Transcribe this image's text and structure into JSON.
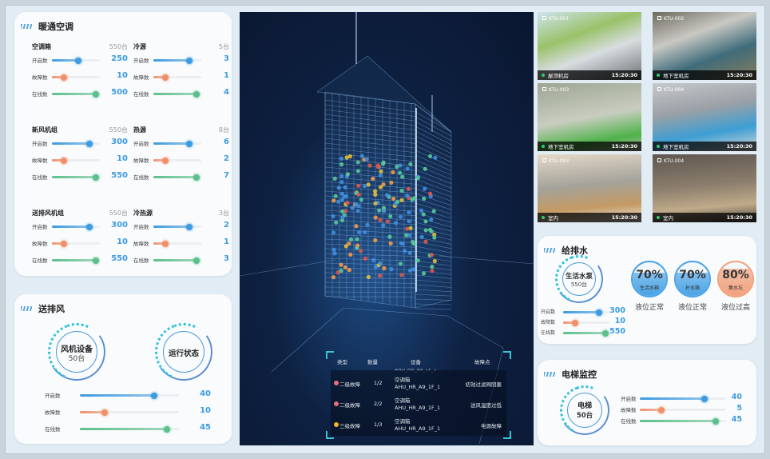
{
  "colors": {
    "accent": "#3d9be0",
    "on": "#3d9be0",
    "fault": "#f0906a",
    "online": "#5cc08c",
    "center_bg": "#0e2142",
    "cyan": "#3cc3d0"
  },
  "labels": {
    "on": "开启数",
    "fault": "故障数",
    "online": "在线数"
  },
  "hvac": {
    "title": "暖通空调",
    "groups": [
      {
        "name": "空调箱",
        "total": "550台",
        "on": {
          "value": "250",
          "level": 0.55
        },
        "fault": {
          "value": "10",
          "level": 0.25
        },
        "online": {
          "value": "500",
          "level": 0.92
        }
      },
      {
        "name": "冷源",
        "total": "5台",
        "on": {
          "value": "3",
          "level": 0.75
        },
        "fault": {
          "value": "1",
          "level": 0.25
        },
        "online": {
          "value": "4",
          "level": 0.9
        }
      },
      {
        "name": "新风机组",
        "total": "550台",
        "on": {
          "value": "300",
          "level": 0.78
        },
        "fault": {
          "value": "10",
          "level": 0.25
        },
        "online": {
          "value": "550",
          "level": 0.92
        }
      },
      {
        "name": "热源",
        "total": "8台",
        "on": {
          "value": "6",
          "level": 0.75
        },
        "fault": {
          "value": "2",
          "level": 0.25
        },
        "online": {
          "value": "7",
          "level": 0.9
        }
      },
      {
        "name": "送排风机组",
        "total": "550台",
        "on": {
          "value": "300",
          "level": 0.78
        },
        "fault": {
          "value": "10",
          "level": 0.25
        },
        "online": {
          "value": "550",
          "level": 0.92
        }
      },
      {
        "name": "冷热源",
        "total": "3台",
        "on": {
          "value": "2",
          "level": 0.75
        },
        "fault": {
          "value": "1",
          "level": 0.25
        },
        "online": {
          "value": "3",
          "level": 0.9
        }
      }
    ]
  },
  "ventilation": {
    "title": "送排风",
    "device_name": "风机设备",
    "device_count": "50台",
    "status_label": "运行状态",
    "on": {
      "value": "40",
      "level": 0.75
    },
    "fault": {
      "value": "10",
      "level": 0.25
    },
    "online": {
      "value": "45",
      "level": 0.88
    }
  },
  "faults": {
    "headers": [
      "类型",
      "数量",
      "设备",
      "故障点"
    ],
    "partial_row_device": "AHU_HR_A9_1F_1",
    "rows": [
      {
        "level": "二级故障",
        "color": "#e8707c",
        "count": "1/2",
        "device_type": "空调箱",
        "device_id": "AHU_HR_A9_1F_1",
        "point": "初效过滤网阻塞"
      },
      {
        "level": "二级故障",
        "color": "#e8707c",
        "count": "2/2",
        "device_type": "空调箱",
        "device_id": "AHU_HR_A9_1F_1",
        "point": "送风温度过低"
      },
      {
        "level": "三级故障",
        "color": "#f1b52a",
        "count": "1/3",
        "device_type": "空调箱",
        "device_id": "AHU_HR_A9_1F_1",
        "point": "电源故障"
      }
    ]
  },
  "cameras": [
    {
      "id": "KTU-001",
      "location": "屋顶机房",
      "time": "15:20:30",
      "bg": "linear-gradient(160deg,#cfe3ee 0%,#9ac26a 35%,#d8dde0 60%,#6b6f72 100%)"
    },
    {
      "id": "KTU-002",
      "location": "地下室机房",
      "time": "15:20:30",
      "bg": "linear-gradient(160deg,#6d6a5e 0%,#c9c8c3 35%,#3f6c7a 65%,#8b7c5c 100%)"
    },
    {
      "id": "KTU-003",
      "location": "地下室机房",
      "time": "15:20:30",
      "bg": "linear-gradient(170deg,#9ea593 0%,#c8cdbf 50%,#4fb24a 80%,#b6b9ad 100%)"
    },
    {
      "id": "KTU-004",
      "location": "地下室机房",
      "time": "15:20:30",
      "bg": "linear-gradient(170deg,#c7c9cc 0%,#9aa0a6 40%,#3d9ed4 70%,#d7d7d7 100%)"
    },
    {
      "id": "KTU-003",
      "location": "室内",
      "time": "15:20:30",
      "bg": "linear-gradient(175deg,#e4d9c8 0%,#a4a29a 45%,#c49a64 75%,#e9e4dc 100%)"
    },
    {
      "id": "KTU-004",
      "location": "室内",
      "time": "15:20:30",
      "bg": "linear-gradient(175deg,#5e5650 0%,#8a7d6c 45%,#c0aa8a 75%,#4a4541 100%)"
    }
  ],
  "water": {
    "title": "给排水",
    "device_name": "生活水泵",
    "device_count": "550台",
    "on": {
      "value": "300",
      "level": 0.78
    },
    "fault": {
      "value": "10",
      "level": 0.25
    },
    "online": {
      "value": "550",
      "level": 0.92
    },
    "tanks": [
      {
        "percent": "70%",
        "name": "生活水箱",
        "status": "液位正常",
        "level": 0.7,
        "color": "#4aa3e6"
      },
      {
        "percent": "70%",
        "name": "补水箱",
        "status": "液位正常",
        "level": 0.7,
        "color": "#4aa3e6"
      },
      {
        "percent": "80%",
        "name": "集水坑",
        "status": "液位过高",
        "level": 0.8,
        "color": "#f2a27c"
      }
    ]
  },
  "elevator": {
    "title": "电梯监控",
    "device_name": "电梯",
    "device_count": "50台",
    "on": {
      "value": "40",
      "level": 0.75
    },
    "fault": {
      "value": "5",
      "level": 0.25
    },
    "online": {
      "value": "45",
      "level": 0.88
    }
  }
}
